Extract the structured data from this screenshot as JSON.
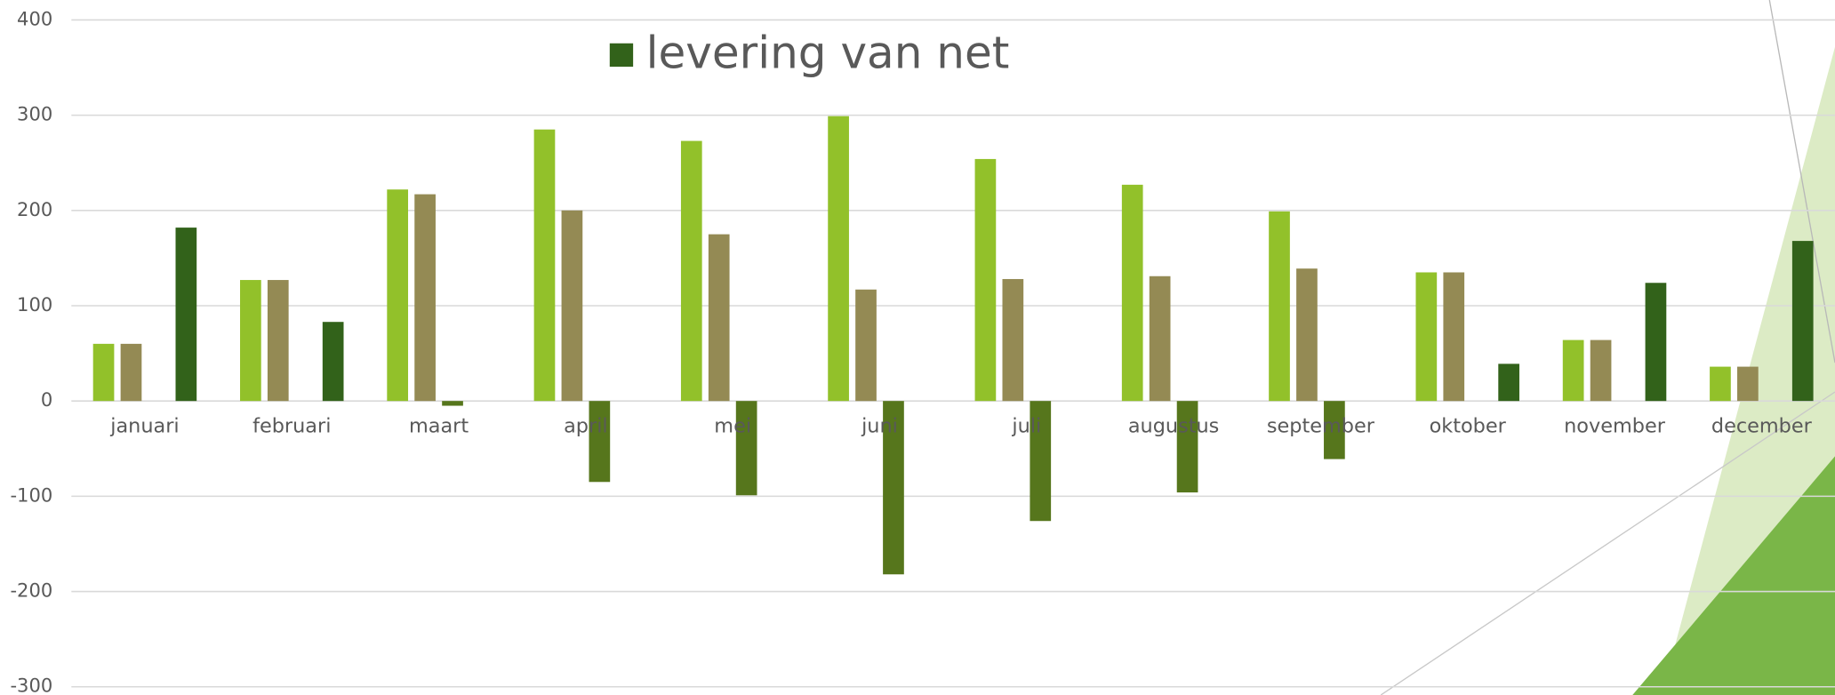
{
  "chart_data": {
    "type": "bar",
    "categories": [
      "januari",
      "februari",
      "maart",
      "april",
      "mei",
      "juni",
      "juli",
      "augustus",
      "september",
      "oktober",
      "november",
      "december"
    ],
    "series": [
      {
        "color": "#92c12a",
        "values": [
          60,
          127,
          222,
          285,
          273,
          299,
          254,
          227,
          199,
          135,
          64,
          36
        ]
      },
      {
        "color": "#948a54",
        "values": [
          60,
          127,
          217,
          200,
          175,
          117,
          128,
          131,
          139,
          135,
          64,
          36
        ]
      },
      {
        "color": "#56761c",
        "values": [
          null,
          null,
          -5,
          -85,
          -99,
          -182,
          -126,
          -96,
          -61,
          null,
          null,
          null
        ]
      },
      {
        "name": "levering van net",
        "color": "#32621a",
        "values": [
          182,
          83,
          null,
          null,
          null,
          null,
          null,
          null,
          null,
          39,
          124,
          168
        ]
      }
    ],
    "ylim": [
      -300,
      400
    ],
    "yticks": [
      -300,
      -200,
      -100,
      0,
      100,
      200,
      300,
      400
    ],
    "grid": true
  }
}
